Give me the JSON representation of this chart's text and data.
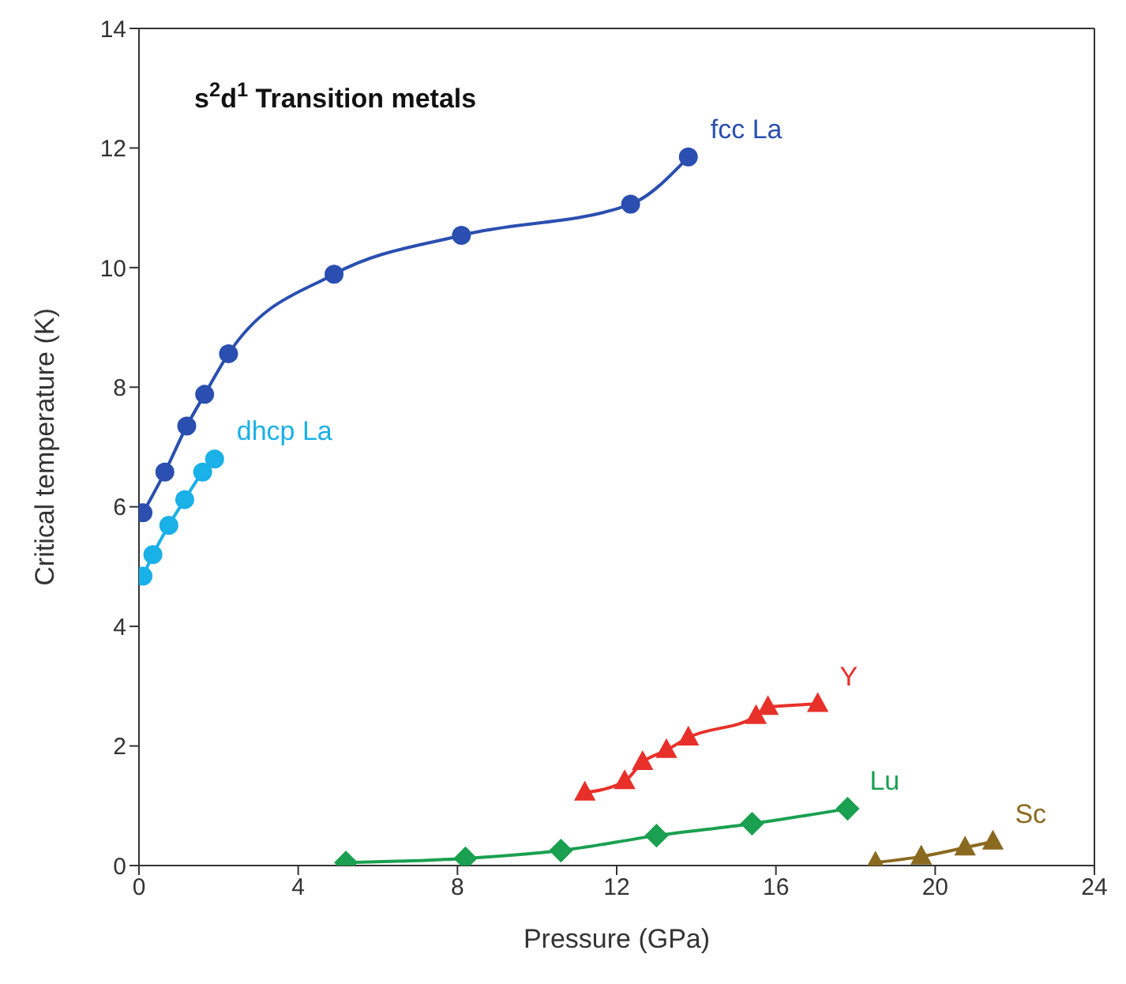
{
  "chart_data": {
    "type": "line",
    "title": "s$^{2}$d$^{1}$ Transition metals",
    "xlabel": "Pressure (GPa)",
    "ylabel": "Critical temperature (K)",
    "xlim": [
      0,
      24
    ],
    "xticks": [
      0,
      4,
      8,
      12,
      16,
      20,
      24
    ],
    "ylim": [
      0,
      14
    ],
    "yticks": [
      0,
      2,
      4,
      6,
      8,
      10,
      12,
      14
    ],
    "series": [
      {
        "name": "fcc La",
        "color": "#2a4fb0",
        "marker": "circle",
        "x": [
          0.1,
          0.65,
          1.2,
          1.65,
          2.25,
          4.9,
          8.1,
          12.35,
          13.8
        ],
        "values": [
          5.9,
          6.58,
          7.35,
          7.88,
          8.56,
          9.89,
          10.54,
          11.06,
          11.85
        ]
      },
      {
        "name": "dhcp La",
        "color": "#1ab0e8",
        "marker": "circle",
        "x": [
          0.1,
          0.35,
          0.75,
          1.15,
          1.6,
          1.9
        ],
        "values": [
          4.84,
          5.2,
          5.69,
          6.12,
          6.58,
          6.8
        ]
      },
      {
        "name": "Y",
        "color": "#e8302a",
        "marker": "triangle",
        "x": [
          11.2,
          12.2,
          12.65,
          13.25,
          13.8,
          15.5,
          15.8,
          17.05
        ],
        "values": [
          1.22,
          1.41,
          1.73,
          1.93,
          2.14,
          2.5,
          2.65,
          2.7
        ]
      },
      {
        "name": "Lu",
        "color": "#1aa050",
        "marker": "diamond",
        "x": [
          5.2,
          8.2,
          10.6,
          13.0,
          15.4,
          17.8
        ],
        "values": [
          0.05,
          0.12,
          0.25,
          0.5,
          0.7,
          0.95
        ]
      },
      {
        "name": "Sc",
        "color": "#8a6a20",
        "marker": "triangle",
        "x": [
          18.5,
          19.65,
          20.75,
          21.45
        ],
        "values": [
          0.05,
          0.15,
          0.3,
          0.4
        ]
      }
    ]
  }
}
